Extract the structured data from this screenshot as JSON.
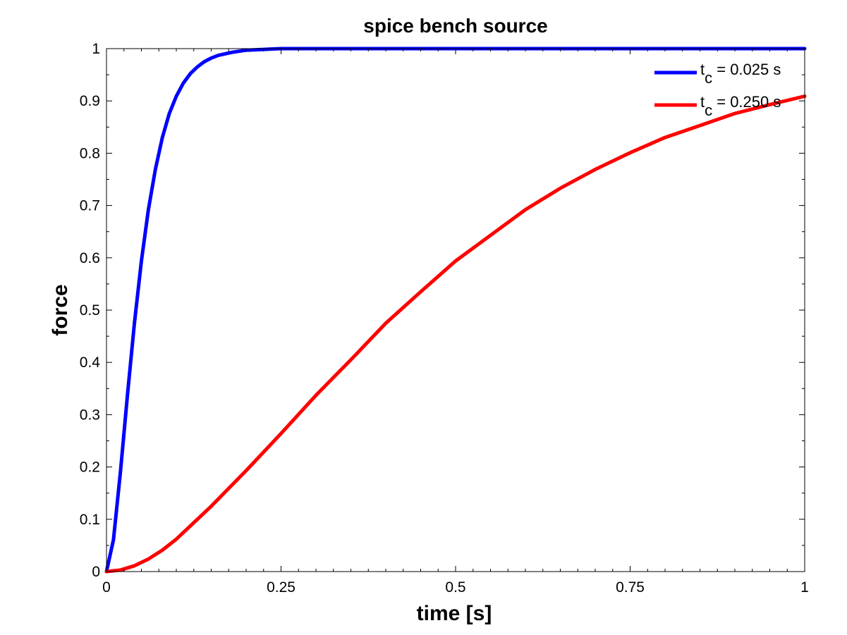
{
  "chart_data": {
    "type": "line",
    "title": "spice bench source",
    "xlabel": "time [s]",
    "ylabel": "force",
    "xlim": [
      0,
      1
    ],
    "ylim": [
      0,
      1
    ],
    "x_ticks": [
      0,
      0.25,
      0.5,
      0.75,
      1
    ],
    "x_tick_labels": [
      "0",
      "0.25",
      "0.5",
      "0.75",
      "1"
    ],
    "y_ticks": [
      0,
      0.1,
      0.2,
      0.3,
      0.4,
      0.5,
      0.6,
      0.7,
      0.8,
      0.9,
      1
    ],
    "y_tick_labels": [
      "0",
      "0.1",
      "0.2",
      "0.3",
      "0.4",
      "0.5",
      "0.6",
      "0.7",
      "0.8",
      "0.9",
      "1"
    ],
    "grid": false,
    "legend_position": "top-right",
    "series": [
      {
        "name": "t_c = 0.025 s",
        "legend": {
          "prefix": "t",
          "subscript": "c",
          "suffix": " = 0.025 s"
        },
        "color": "#0000ff",
        "x": [
          0,
          0.01,
          0.02,
          0.03,
          0.04,
          0.05,
          0.06,
          0.07,
          0.08,
          0.09,
          0.1,
          0.11,
          0.12,
          0.13,
          0.14,
          0.15,
          0.16,
          0.18,
          0.2,
          0.25,
          0.3,
          0.4,
          0.5,
          0.6,
          0.7,
          0.8,
          0.9,
          1.0
        ],
        "y": [
          0,
          0.061,
          0.191,
          0.337,
          0.475,
          0.594,
          0.692,
          0.769,
          0.83,
          0.876,
          0.909,
          0.934,
          0.952,
          0.965,
          0.975,
          0.982,
          0.987,
          0.993,
          0.997,
          1.0,
          1.0,
          1.0,
          1.0,
          1.0,
          1.0,
          1.0,
          1.0,
          1.0
        ]
      },
      {
        "name": "t_c = 0.250 s",
        "legend": {
          "prefix": "t",
          "subscript": "c",
          "suffix": " = 0.250 s"
        },
        "color": "#ff0000",
        "x": [
          0,
          0.02,
          0.04,
          0.06,
          0.08,
          0.1,
          0.15,
          0.2,
          0.25,
          0.3,
          0.35,
          0.4,
          0.45,
          0.5,
          0.55,
          0.6,
          0.65,
          0.7,
          0.75,
          0.8,
          0.85,
          0.9,
          0.95,
          1.0
        ],
        "y": [
          0,
          0.003,
          0.011,
          0.024,
          0.041,
          0.062,
          0.125,
          0.193,
          0.264,
          0.337,
          0.405,
          0.475,
          0.535,
          0.594,
          0.643,
          0.692,
          0.733,
          0.769,
          0.801,
          0.83,
          0.853,
          0.876,
          0.893,
          0.909
        ]
      }
    ]
  }
}
